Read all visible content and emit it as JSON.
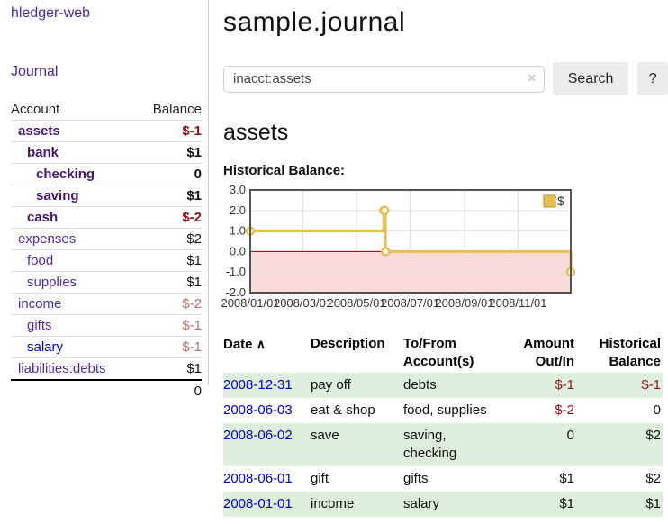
{
  "colors": {
    "link_purple": "#4b2a9e",
    "link_purple_bold": "#40176e",
    "link_blue": "#0000cc",
    "negative_strong": "#8b1515",
    "negative_light": "#c06d6d",
    "row_stripe_green": "#ddeedd",
    "chart_line_gold": "#e6bf52",
    "chart_negative_region": "#fbdada",
    "chart_zero_line": "#8b0000"
  },
  "sidebar": {
    "app_title": "hledger-web",
    "journal_label": "Journal",
    "accounts_table": {
      "headers": {
        "account": "Account",
        "balance": "Balance"
      },
      "rows": [
        {
          "name": "assets",
          "balance": "$-1",
          "depth": 1,
          "bold": true,
          "link_color": "purple",
          "balance_class": "neg"
        },
        {
          "name": "bank",
          "balance": "$1",
          "depth": 2,
          "bold": true,
          "link_color": "purple",
          "balance_class": ""
        },
        {
          "name": "checking",
          "balance": "0",
          "depth": 3,
          "bold": true,
          "link_color": "purple",
          "balance_class": ""
        },
        {
          "name": "saving",
          "balance": "$1",
          "depth": 3,
          "bold": true,
          "link_color": "purple",
          "balance_class": ""
        },
        {
          "name": "cash",
          "balance": "$-2",
          "depth": 2,
          "bold": true,
          "link_color": "purple",
          "balance_class": "neg"
        },
        {
          "name": "expenses",
          "balance": "$2",
          "depth": 1,
          "bold": false,
          "link_color": "purple",
          "balance_class": ""
        },
        {
          "name": "food",
          "balance": "$1",
          "depth": 2,
          "bold": false,
          "link_color": "purple",
          "balance_class": ""
        },
        {
          "name": "supplies",
          "balance": "$1",
          "depth": 2,
          "bold": false,
          "link_color": "purple",
          "balance_class": ""
        },
        {
          "name": "income",
          "balance": "$-2",
          "depth": 1,
          "bold": false,
          "link_color": "purple",
          "balance_class": "neg-light"
        },
        {
          "name": "gifts",
          "balance": "$-1",
          "depth": 2,
          "bold": false,
          "link_color": "purple",
          "balance_class": "neg-light"
        },
        {
          "name": "salary",
          "balance": "$-1",
          "depth": 2,
          "bold": false,
          "link_color": "blue",
          "balance_class": "neg-light"
        },
        {
          "name": "liabilities:debts",
          "balance": "$1",
          "depth": 1,
          "bold": false,
          "link_color": "purple",
          "balance_class": ""
        }
      ],
      "total": "0"
    }
  },
  "main": {
    "title": "sample.journal",
    "search": {
      "value": "inacct:assets",
      "clear_icon": "×",
      "search_button_label": "Search",
      "help_button_label": "?"
    },
    "account_heading": "assets",
    "chart_label": "Historical Balance:"
  },
  "chart_data": {
    "type": "line",
    "style": "step",
    "title": "Historical Balance:",
    "legend": {
      "label": "$",
      "position": "top-right"
    },
    "xlim_days": [
      0,
      365
    ],
    "ylim": [
      -2,
      3
    ],
    "y_ticks": [
      "3.0",
      "2.0",
      "1.0",
      "0.0",
      "-1.0",
      "-2.0"
    ],
    "y_ticks_values": [
      3,
      2,
      1,
      0,
      -1,
      -2
    ],
    "x_ticks": [
      {
        "day": 0,
        "label": "2008/01/01"
      },
      {
        "day": 60,
        "label": "2008/03/01"
      },
      {
        "day": 121,
        "label": "2008/05/01"
      },
      {
        "day": 182,
        "label": "2008/07/01"
      },
      {
        "day": 244,
        "label": "2008/09/01"
      },
      {
        "day": 305,
        "label": "2008/11/01"
      }
    ],
    "series": [
      {
        "name": "$",
        "color": "#e6bf52",
        "points": [
          {
            "date": "2008-01-01",
            "day": 0,
            "value": 1
          },
          {
            "date": "2008-06-01",
            "day": 152,
            "value": 2
          },
          {
            "date": "2008-06-02",
            "day": 153,
            "value": 2
          },
          {
            "date": "2008-06-03",
            "day": 154,
            "value": 0
          },
          {
            "date": "2008-12-31",
            "day": 365,
            "value": -1
          }
        ]
      }
    ],
    "negative_region_fill": "#fbdada",
    "zero_line_color": "#8b0000",
    "grid": true
  },
  "register_table": {
    "headers": {
      "date": {
        "label": "Date",
        "sort_indicator": "∧"
      },
      "description": "Description",
      "accounts": {
        "line1": "To/From",
        "line2": "Account(s)"
      },
      "amount": {
        "line1": "Amount",
        "line2": "Out/In"
      },
      "balance": {
        "line1": "Historical",
        "line2": "Balance"
      }
    },
    "rows": [
      {
        "date": "2008-12-31",
        "description": "pay off",
        "accounts": "debts",
        "amount": "$-1",
        "balance": "$-1",
        "amount_class": "neg",
        "balance_class": "neg",
        "striped": true
      },
      {
        "date": "2008-06-03",
        "description": "eat & shop",
        "accounts": "food, supplies",
        "amount": "$-2",
        "balance": "0",
        "amount_class": "neg",
        "balance_class": "",
        "striped": false
      },
      {
        "date": "2008-06-02",
        "description": "save",
        "accounts": "saving, checking",
        "amount": "0",
        "balance": "$2",
        "amount_class": "",
        "balance_class": "",
        "striped": true
      },
      {
        "date": "2008-06-01",
        "description": "gift",
        "accounts": "gifts",
        "amount": "$1",
        "balance": "$2",
        "amount_class": "",
        "balance_class": "",
        "striped": false
      },
      {
        "date": "2008-01-01",
        "description": "income",
        "accounts": "salary",
        "amount": "$1",
        "balance": "$1",
        "amount_class": "",
        "balance_class": "",
        "striped": true
      }
    ]
  }
}
